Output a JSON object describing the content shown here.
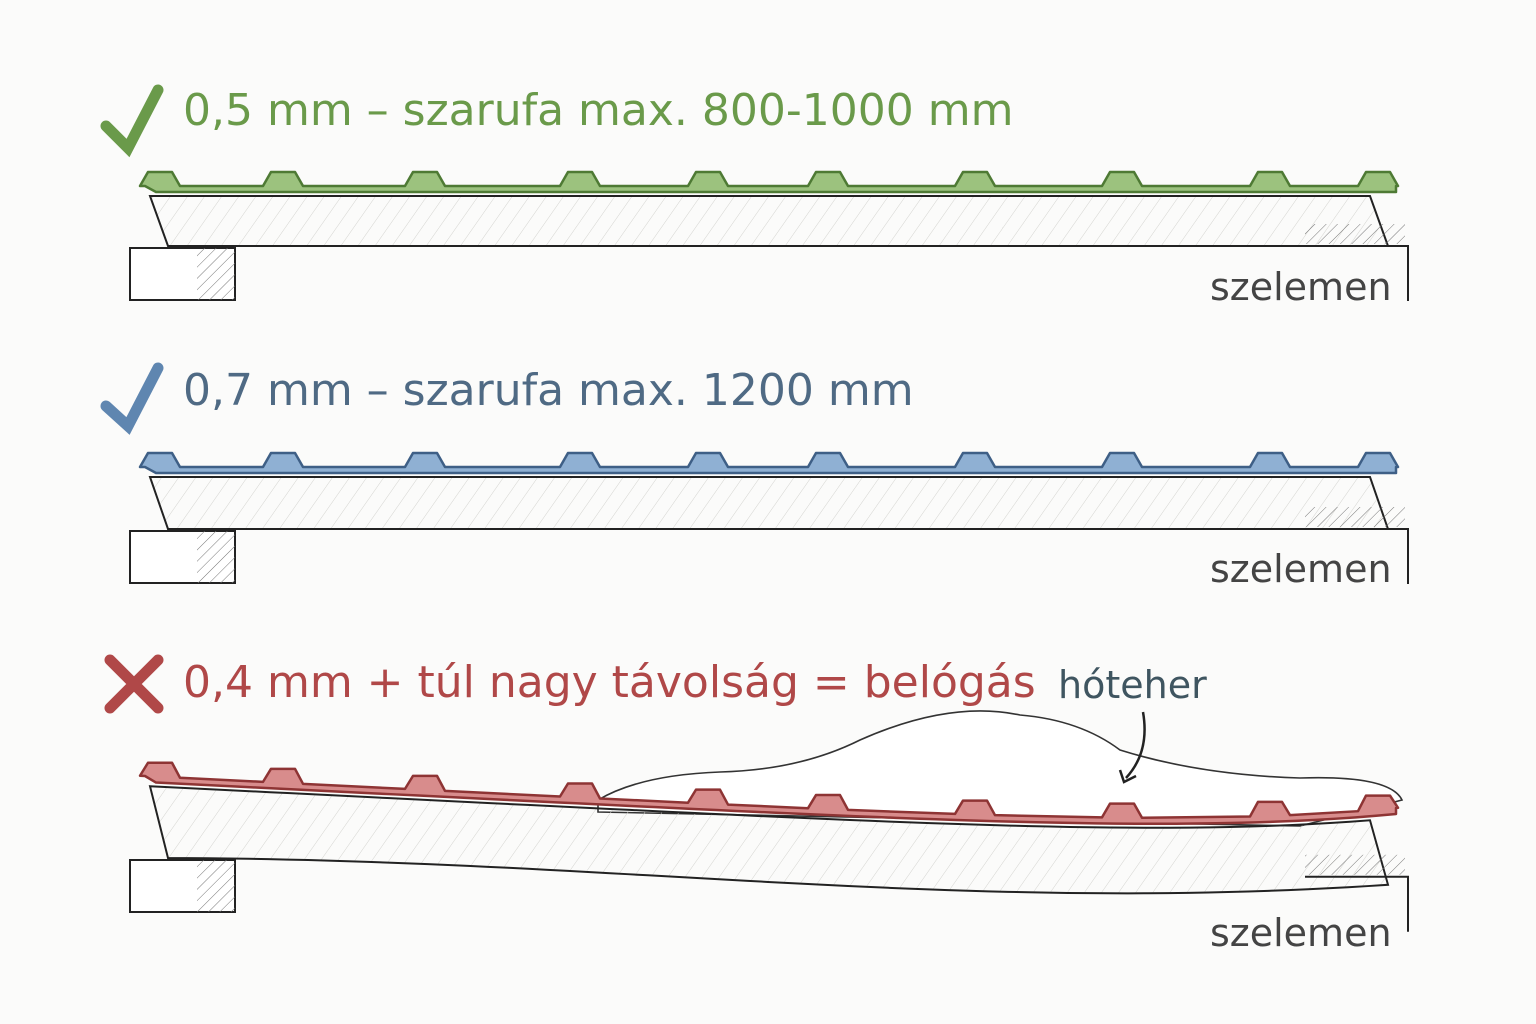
{
  "panels": [
    {
      "label": "0,5 mm – szarufa max. 800-1000 mm",
      "support_label": "szelemen"
    },
    {
      "label": "0,7 mm – szarufa max. 1200 mm",
      "support_label": "szelemen"
    },
    {
      "label": "0,4 mm + túl nagy távolság = belógás",
      "support_label": "szelemen"
    }
  ],
  "snow_label": "hóteher"
}
